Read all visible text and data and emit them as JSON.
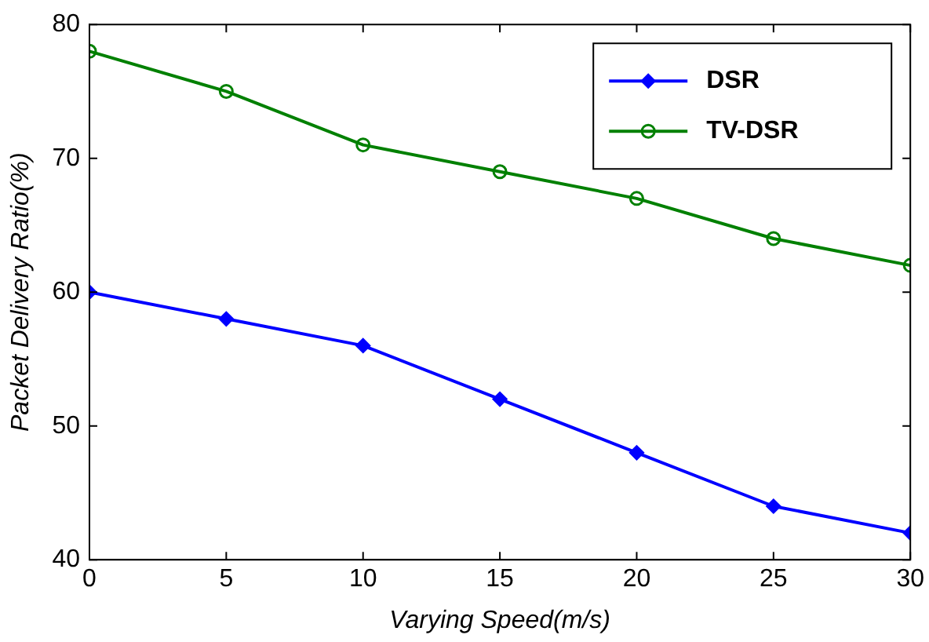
{
  "chart_data": {
    "type": "line",
    "xlabel": "Varying Speed(m/s)",
    "ylabel": "Packet Delivery Ratio(%)",
    "x": [
      0,
      5,
      10,
      15,
      20,
      25,
      30
    ],
    "series": [
      {
        "name": "DSR",
        "color": "#0000ff",
        "marker": "diamond",
        "values": [
          60,
          58,
          56,
          52,
          48,
          44,
          42
        ]
      },
      {
        "name": "TV-DSR",
        "color": "#008000",
        "marker": "circle",
        "values": [
          78,
          75,
          71,
          69,
          67,
          64,
          62
        ]
      }
    ],
    "xlim": [
      0,
      30
    ],
    "xticks": [
      0,
      5,
      10,
      15,
      20,
      25,
      30
    ],
    "ylim": [
      40,
      80
    ],
    "yticks": [
      40,
      50,
      60,
      70,
      80
    ],
    "grid": false,
    "legend": "top right",
    "line_style": "solid"
  }
}
